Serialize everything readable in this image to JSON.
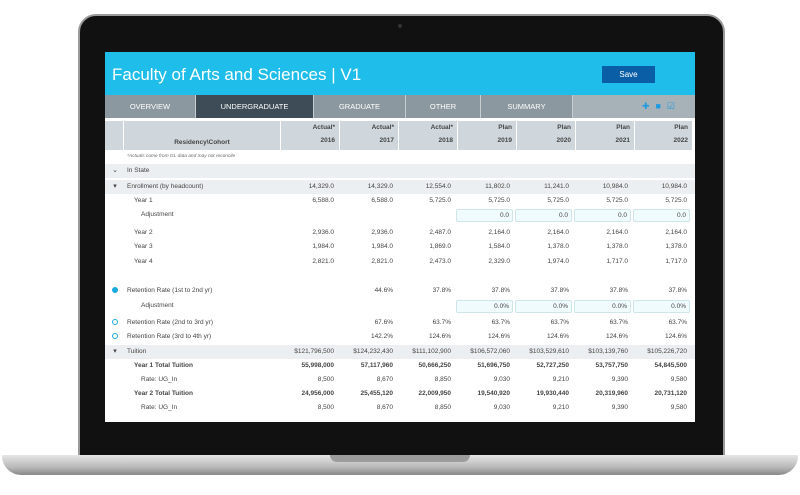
{
  "header": {
    "title": "Faculty of Arts and Sciences | V1",
    "save_label": "Save",
    "accent": "#1fbde9"
  },
  "tabs": [
    {
      "label": "OVERVIEW"
    },
    {
      "label": "UNDERGRADUATE",
      "active": true
    },
    {
      "label": "GRADUATE"
    },
    {
      "label": "OTHER"
    },
    {
      "label": "SUMMARY"
    }
  ],
  "toolbar_icons": [
    "plus-icon",
    "folder-icon",
    "checkbox-icon"
  ],
  "columns": {
    "label": "Residency\\Cohort",
    "headers": [
      {
        "type": "Actual*",
        "year": "2016"
      },
      {
        "type": "Actual*",
        "year": "2017"
      },
      {
        "type": "Actual*",
        "year": "2018"
      },
      {
        "type": "Plan",
        "year": "2019"
      },
      {
        "type": "Plan",
        "year": "2020"
      },
      {
        "type": "Plan",
        "year": "2021"
      },
      {
        "type": "Plan",
        "year": "2022"
      }
    ]
  },
  "note": "*Actuals come from GL data and may not reconcile",
  "rows": [
    {
      "label": "In State",
      "icon": "chevron-down-icon",
      "style": "shade",
      "values": []
    },
    {
      "label": "Enrollment (by headcount)",
      "icon": "caret-down-icon",
      "style": "shade",
      "values": [
        "14,329.0",
        "14,329.0",
        "12,554.0",
        "11,802.0",
        "11,241.0",
        "10,984.0",
        "10,984.0"
      ]
    },
    {
      "label": "Year 1",
      "indent": 1,
      "values": [
        "6,588.0",
        "6,588.0",
        "5,725.0",
        "5,725.0",
        "5,725.0",
        "5,725.0",
        "5,725.0"
      ]
    },
    {
      "label": "Adjustment",
      "indent": 2,
      "input": true,
      "values": [
        "",
        "",
        "",
        "0.0",
        "0.0",
        "0.0",
        "0.0"
      ]
    },
    {
      "label": "Year 2",
      "indent": 1,
      "values": [
        "2,936.0",
        "2,936.0",
        "2,487.0",
        "2,164.0",
        "2,164.0",
        "2,164.0",
        "2,164.0"
      ]
    },
    {
      "label": "Year 3",
      "indent": 1,
      "values": [
        "1,984.0",
        "1,984.0",
        "1,869.0",
        "1,584.0",
        "1,378.0",
        "1,378.0",
        "1,378.0"
      ]
    },
    {
      "label": "Year 4",
      "indent": 1,
      "values": [
        "2,821.0",
        "2,821.0",
        "2,473.0",
        "2,329.0",
        "1,974.0",
        "1,717.0",
        "1,717.0"
      ]
    },
    {
      "label": "Retention Rate (1st to 2nd yr)",
      "icon": "minus-circle-icon",
      "values": [
        "",
        "44.6%",
        "37.8%",
        "37.8%",
        "37.8%",
        "37.8%",
        "37.8%"
      ]
    },
    {
      "label": "Adjustment",
      "indent": 2,
      "input": true,
      "values": [
        "",
        "",
        "",
        "0.0%",
        "0.0%",
        "0.0%",
        "0.0%"
      ]
    },
    {
      "label": "Retention Rate (2nd to 3rd yr)",
      "icon": "plus-circle-icon",
      "values": [
        "",
        "67.6%",
        "63.7%",
        "63.7%",
        "63.7%",
        "63.7%",
        "63.7%"
      ]
    },
    {
      "label": "Retention Rate (3rd to 4th yr)",
      "icon": "plus-circle-icon",
      "values": [
        "",
        "142.2%",
        "124.6%",
        "124.6%",
        "124.6%",
        "124.6%",
        "124.6%"
      ]
    },
    {
      "label": "Tuition",
      "icon": "caret-down-icon",
      "style": "shade",
      "values": [
        "$121,796,500",
        "$124,232,430",
        "$111,102,900",
        "$106,572,060",
        "$103,529,610",
        "$103,139,760",
        "$105,226,720"
      ]
    },
    {
      "label": "Year 1 Total Tuition",
      "indent": 1,
      "bold": true,
      "values": [
        "55,998,000",
        "57,117,960",
        "50,666,250",
        "51,696,750",
        "52,727,250",
        "53,757,750",
        "54,845,500"
      ]
    },
    {
      "label": "Rate: UG_In",
      "indent": 2,
      "values": [
        "8,500",
        "8,670",
        "8,850",
        "9,030",
        "9,210",
        "9,390",
        "9,580"
      ]
    },
    {
      "label": "Year 2 Total Tuition",
      "indent": 1,
      "bold": true,
      "values": [
        "24,956,000",
        "25,455,120",
        "22,009,950",
        "19,540,920",
        "19,930,440",
        "20,319,960",
        "20,731,120"
      ]
    },
    {
      "label": "Rate: UG_In",
      "indent": 2,
      "values": [
        "8,500",
        "8,670",
        "8,850",
        "9,030",
        "9,210",
        "9,390",
        "9,580"
      ]
    }
  ]
}
